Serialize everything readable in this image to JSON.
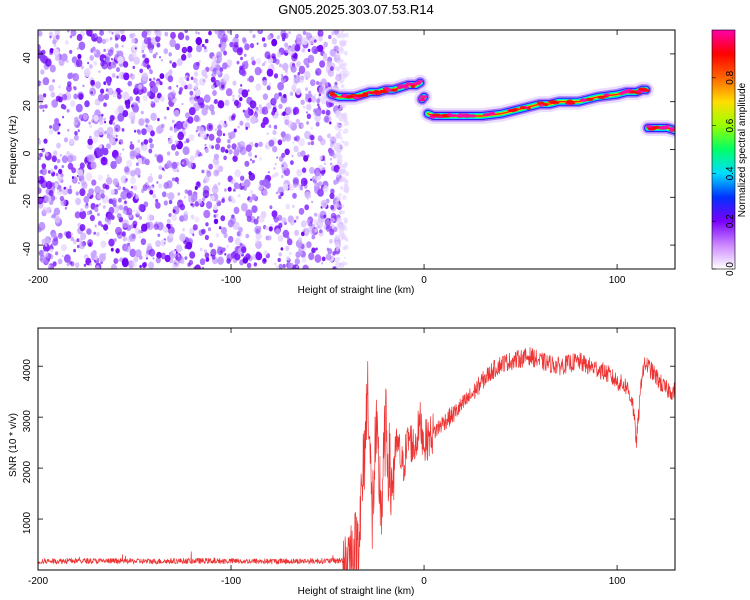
{
  "title": "GN05.2025.303.07.53.R14",
  "chart_data": [
    {
      "type": "heatmap",
      "xlabel": "Height of straight line (km)",
      "ylabel": "Frequency (Hz)",
      "xlim": [
        -200,
        130
      ],
      "ylim": [
        -50,
        50
      ],
      "x_ticks": [
        -200,
        -100,
        0,
        100
      ],
      "y_ticks": [
        40,
        20,
        0,
        -20,
        -40
      ],
      "colorbar": {
        "label": "Normalized spectral amplitude",
        "range": [
          0,
          1
        ],
        "ticks": [
          "0.0",
          "0.2",
          "0.4",
          "0.6",
          "0.8"
        ],
        "colors": [
          "#ffffff",
          "#cc88ff",
          "#7a00ff",
          "#0030ff",
          "#00ddff",
          "#00ff66",
          "#99ff00",
          "#ffdd00",
          "#ff6600",
          "#ff0000",
          "#ff00aa"
        ]
      },
      "noise_region_x": [
        -200,
        -43
      ],
      "ridge": {
        "name": "",
        "x": [
          -48,
          -44,
          -40,
          -36,
          -32,
          -28,
          -24,
          -20,
          -16,
          -12,
          -8,
          -4,
          -2,
          -1,
          0,
          2,
          5,
          10,
          15,
          20,
          30,
          40,
          50,
          60,
          65,
          70,
          80,
          90,
          100,
          105,
          110,
          113,
          115,
          116,
          118,
          122,
          126,
          130
        ],
        "y": [
          23,
          22,
          22,
          22,
          23,
          24,
          24,
          25,
          25,
          26,
          27,
          27,
          28,
          21,
          22,
          15,
          14,
          14,
          14,
          14,
          14,
          15,
          17,
          19,
          19,
          20,
          20,
          22,
          23,
          24,
          24,
          25,
          25,
          9,
          9,
          9,
          9,
          8
        ]
      }
    },
    {
      "type": "line",
      "xlabel": "Height of straight line (km)",
      "ylabel": "SNR (10 * v/v)",
      "xlim": [
        -200,
        130
      ],
      "ylim": [
        0,
        4750
      ],
      "x_ticks": [
        -200,
        -100,
        0,
        100
      ],
      "y_ticks": [
        1000,
        2000,
        3000,
        4000
      ],
      "series": [
        {
          "name": "",
          "color": "#ee3333",
          "x": [
            -200,
            -180,
            -160,
            -140,
            -120,
            -100,
            -80,
            -60,
            -45,
            -40,
            -35,
            -32,
            -29,
            -27,
            -25,
            -22,
            -20,
            -17,
            -14,
            -11,
            -8,
            -5,
            -2,
            0,
            5,
            10,
            15,
            20,
            25,
            30,
            35,
            40,
            45,
            50,
            55,
            60,
            65,
            70,
            75,
            80,
            85,
            90,
            95,
            100,
            105,
            108,
            110,
            113,
            115,
            120,
            125,
            130
          ],
          "values": [
            170,
            180,
            175,
            170,
            180,
            175,
            170,
            175,
            180,
            200,
            350,
            1500,
            3700,
            900,
            2600,
            1200,
            2800,
            1600,
            2500,
            2000,
            2600,
            2400,
            2900,
            2500,
            2700,
            2900,
            3050,
            3250,
            3450,
            3700,
            3900,
            4050,
            4100,
            4150,
            4200,
            4100,
            4050,
            4000,
            4050,
            4100,
            4000,
            3950,
            3850,
            3700,
            3600,
            3300,
            2500,
            3900,
            4050,
            3800,
            3550,
            3500
          ]
        }
      ]
    }
  ]
}
